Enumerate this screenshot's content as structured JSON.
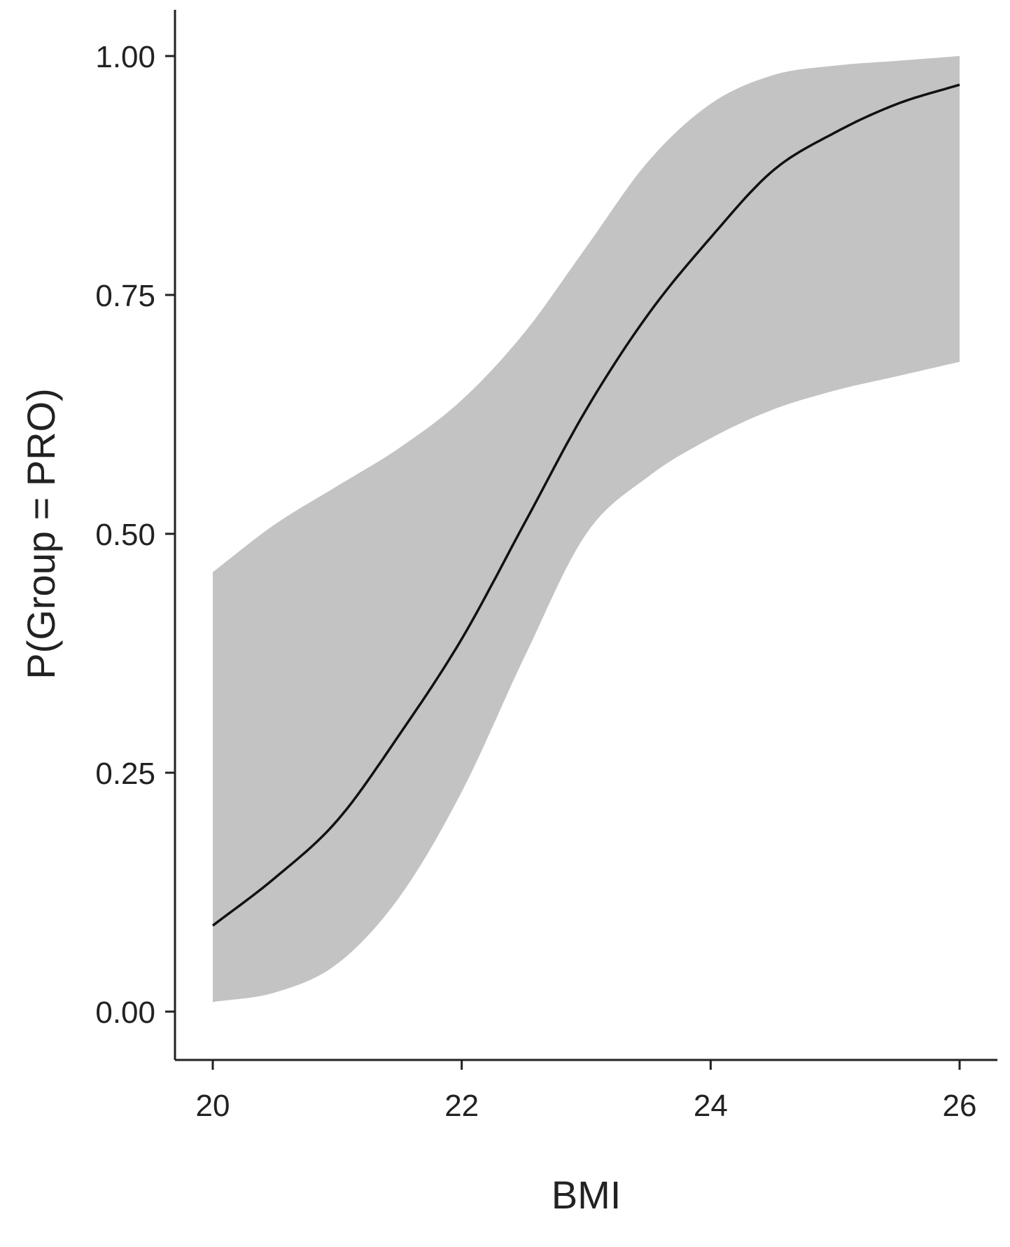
{
  "chart_data": {
    "type": "line",
    "title": "",
    "xlabel": "BMI",
    "ylabel": "P(Group = PRO)",
    "xlim": [
      19.7,
      26.3
    ],
    "ylim": [
      -0.05,
      1.05
    ],
    "x_ticks": [
      20,
      22,
      24,
      26
    ],
    "y_ticks": [
      0.0,
      0.25,
      0.5,
      0.75,
      1.0
    ],
    "x_tick_labels": [
      "20",
      "22",
      "24",
      "26"
    ],
    "y_tick_labels": [
      "0.00",
      "0.25",
      "0.50",
      "0.75",
      "1.00"
    ],
    "grid": false,
    "legend": "none",
    "colors": {
      "line": "#111111",
      "band": "#c3c3c3",
      "axis": "#222222"
    },
    "series": [
      {
        "x": [
          20,
          20.5,
          21,
          21.5,
          22,
          22.5,
          23,
          23.5,
          24,
          24.5,
          25,
          25.5,
          26
        ],
        "values": [
          0.09,
          0.14,
          0.2,
          0.29,
          0.39,
          0.51,
          0.63,
          0.73,
          0.81,
          0.88,
          0.92,
          0.95,
          0.97
        ],
        "lower": [
          0.01,
          0.02,
          0.05,
          0.12,
          0.23,
          0.37,
          0.5,
          0.56,
          0.6,
          0.63,
          0.65,
          0.665,
          0.68
        ],
        "upper": [
          0.46,
          0.51,
          0.55,
          0.59,
          0.64,
          0.71,
          0.8,
          0.89,
          0.95,
          0.98,
          0.99,
          0.995,
          1.0
        ]
      }
    ]
  }
}
